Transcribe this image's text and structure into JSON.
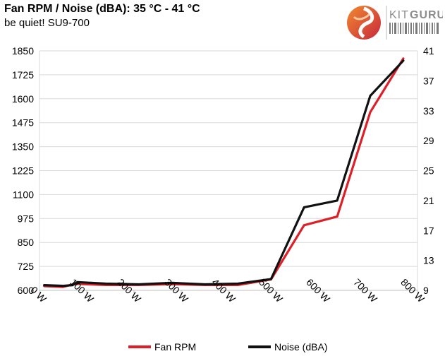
{
  "header": {
    "title": "Fan RPM / Noise (dBA): 35 °C - 41 °C",
    "subtitle": "be quiet! SU9-700"
  },
  "logo": {
    "text_kit": "KIT",
    "text_guru": "GURU",
    "colors": {
      "kit": "#8c8c8c",
      "guru": "#8c8c8c",
      "red": "#e2453a",
      "orange": "#f08a2f"
    }
  },
  "chart_data": {
    "type": "line",
    "title": "Fan RPM / Noise (dBA): 35 °C - 41 °C",
    "subtitle": "be quiet! SU9-700",
    "xlim": [
      0,
      800
    ],
    "x_ticks": [
      0,
      100,
      200,
      300,
      400,
      500,
      600,
      700,
      800
    ],
    "x_tick_labels": [
      "0 W",
      "100 W",
      "200 W",
      "300 W",
      "400 W",
      "500 W",
      "600 W",
      "700 W",
      "800 W"
    ],
    "y_left_lim": [
      600,
      1850
    ],
    "y_left_ticks": [
      600,
      725,
      850,
      975,
      1100,
      1225,
      1350,
      1475,
      1600,
      1725,
      1850
    ],
    "y_right_lim": [
      9,
      41
    ],
    "y_right_ticks": [
      9,
      13,
      17,
      21,
      25,
      29,
      33,
      37,
      41
    ],
    "grid": "horizontal",
    "legend_position": "bottom",
    "series": [
      {
        "name": "Fan RPM",
        "axis": "left",
        "color": "#dd2027",
        "x": [
          10,
          50,
          70,
          80,
          140,
          210,
          280,
          350,
          420,
          490,
          560,
          630,
          700,
          770
        ],
        "values": [
          622,
          618,
          631,
          634,
          628,
          628,
          632,
          628,
          628,
          657,
          940,
          985,
          1530,
          1810
        ]
      },
      {
        "name": "Noise (dBA)",
        "axis": "right",
        "color": "#111111",
        "x": [
          10,
          50,
          70,
          80,
          140,
          210,
          280,
          350,
          420,
          490,
          560,
          630,
          700,
          770
        ],
        "values": [
          9.7,
          9.6,
          9.7,
          10.1,
          9.9,
          9.8,
          10.0,
          9.8,
          9.9,
          10.5,
          20.1,
          21.0,
          35.0,
          39.7
        ]
      }
    ]
  }
}
